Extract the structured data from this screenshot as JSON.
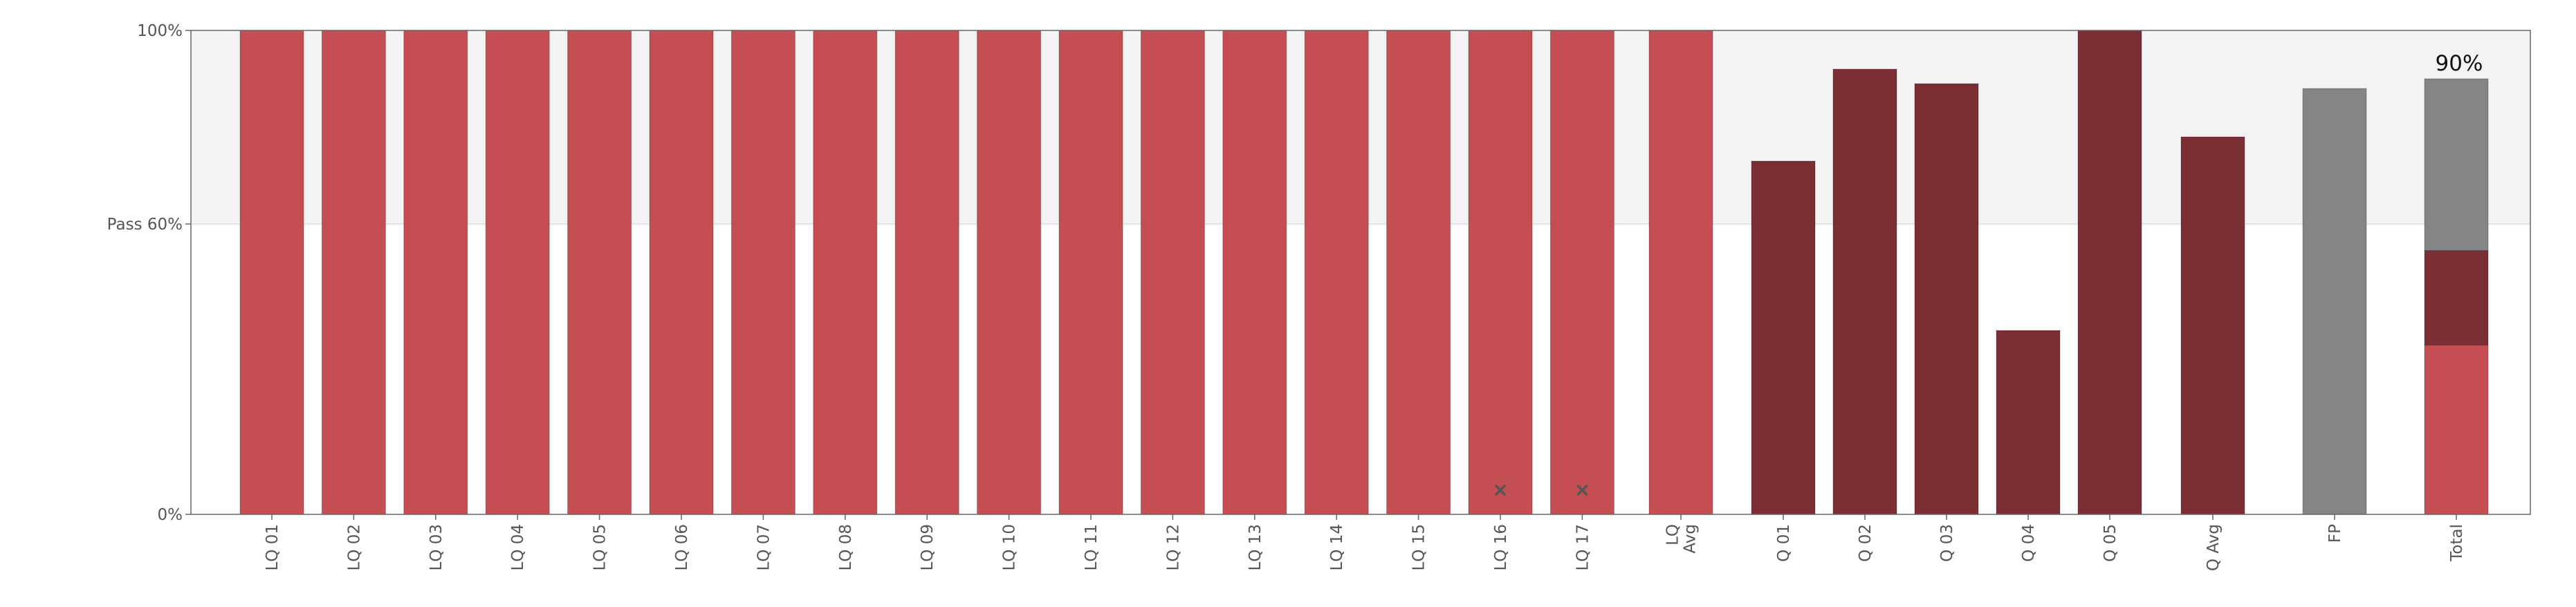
{
  "chart_data": {
    "type": "bar",
    "stacked_last_bar": true,
    "y_ticks": [
      {
        "value": 0,
        "label": "0%"
      },
      {
        "value": 60,
        "label": "Pass 60%"
      },
      {
        "value": 100,
        "label": "100%"
      }
    ],
    "ylim": [
      0,
      100
    ],
    "pass_threshold": 60,
    "colors": {
      "lq": "#c44e52",
      "q": "#7b2f34",
      "fp": "#858585",
      "pass_band": "#f3f3f3",
      "frame": "#666666",
      "missing_marker": "#555555"
    },
    "bars": [
      {
        "label": [
          "LQ 01"
        ],
        "value": 100,
        "kind": "lq"
      },
      {
        "label": [
          "LQ 02"
        ],
        "value": 100,
        "kind": "lq"
      },
      {
        "label": [
          "LQ 03"
        ],
        "value": 100,
        "kind": "lq"
      },
      {
        "label": [
          "LQ 04"
        ],
        "value": 100,
        "kind": "lq"
      },
      {
        "label": [
          "LQ 05"
        ],
        "value": 100,
        "kind": "lq"
      },
      {
        "label": [
          "LQ 06"
        ],
        "value": 100,
        "kind": "lq"
      },
      {
        "label": [
          "LQ 07"
        ],
        "value": 100,
        "kind": "lq"
      },
      {
        "label": [
          "LQ 08"
        ],
        "value": 100,
        "kind": "lq"
      },
      {
        "label": [
          "LQ 09"
        ],
        "value": 100,
        "kind": "lq"
      },
      {
        "label": [
          "LQ 10"
        ],
        "value": 100,
        "kind": "lq"
      },
      {
        "label": [
          "LQ 11"
        ],
        "value": 100,
        "kind": "lq"
      },
      {
        "label": [
          "LQ 12"
        ],
        "value": 100,
        "kind": "lq"
      },
      {
        "label": [
          "LQ 13"
        ],
        "value": 100,
        "kind": "lq"
      },
      {
        "label": [
          "LQ 14"
        ],
        "value": 100,
        "kind": "lq"
      },
      {
        "label": [
          "LQ 15"
        ],
        "value": 100,
        "kind": "lq"
      },
      {
        "label": [
          "LQ 16"
        ],
        "value": 100,
        "kind": "lq",
        "missing_marker": true
      },
      {
        "label": [
          "LQ 17"
        ],
        "value": 100,
        "kind": "lq",
        "missing_marker": true
      },
      {
        "label": [
          "LQ",
          "Avg"
        ],
        "value": 100,
        "kind": "lq"
      },
      {
        "label": [
          "Q 01"
        ],
        "value": 73,
        "kind": "q"
      },
      {
        "label": [
          "Q 02"
        ],
        "value": 92,
        "kind": "q"
      },
      {
        "label": [
          "Q 03"
        ],
        "value": 89,
        "kind": "q"
      },
      {
        "label": [
          "Q 04"
        ],
        "value": 38,
        "kind": "q"
      },
      {
        "label": [
          "Q 05"
        ],
        "value": 100,
        "kind": "q"
      },
      {
        "label": [
          "Q Avg"
        ],
        "value": 78,
        "kind": "q"
      },
      {
        "label": [
          "FP"
        ],
        "value": 88,
        "kind": "fp"
      },
      {
        "label": [
          "Total"
        ],
        "kind": "stack",
        "segments": [
          {
            "kind": "lq",
            "value": 35
          },
          {
            "kind": "q",
            "value": 19.5
          },
          {
            "kind": "fp",
            "value": 35.5
          }
        ],
        "data_label": "90%"
      }
    ]
  }
}
